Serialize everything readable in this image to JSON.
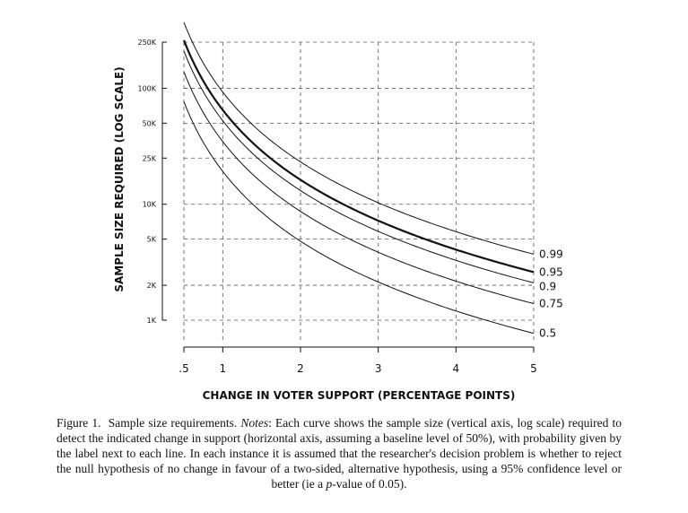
{
  "chart_data": {
    "type": "line",
    "xlabel": "CHANGE IN VOTER SUPPORT (PERCENTAGE POINTS)",
    "ylabel": "SAMPLE SIZE REQUIRED (LOG SCALE)",
    "x_ticks": [
      {
        "value": 0.5,
        "label": ".5"
      },
      {
        "value": 1,
        "label": "1"
      },
      {
        "value": 2,
        "label": "2"
      },
      {
        "value": 3,
        "label": "3"
      },
      {
        "value": 4,
        "label": "4"
      },
      {
        "value": 5,
        "label": "5"
      }
    ],
    "y_ticks": [
      {
        "value": 1000,
        "label": "1K"
      },
      {
        "value": 2000,
        "label": "2K"
      },
      {
        "value": 5000,
        "label": "5K"
      },
      {
        "value": 10000,
        "label": "10K"
      },
      {
        "value": 25000,
        "label": "25K"
      },
      {
        "value": 50000,
        "label": "50K"
      },
      {
        "value": 100000,
        "label": "100K"
      },
      {
        "value": 250000,
        "label": "250K"
      }
    ],
    "y_scale": "log",
    "xlim": [
      0.5,
      5
    ],
    "ylim": [
      1000,
      250000
    ],
    "grid": true,
    "x_samples": [
      0.5,
      0.6,
      0.7,
      0.8,
      1,
      1.25,
      1.5,
      2,
      2.5,
      3,
      3.5,
      4,
      4.5,
      5
    ],
    "series": [
      {
        "name": "0.99",
        "weight": "normal",
        "values": [
          371000,
          258000,
          189000,
          145000,
          92800,
          59400,
          41200,
          23200,
          14850,
          10300,
          7575,
          5800,
          4580,
          3710
        ]
      },
      {
        "name": "0.95",
        "weight": "bold",
        "values": [
          259900,
          180500,
          132600,
          101500,
          64970,
          41580,
          28880,
          16240,
          10400,
          7220,
          5300,
          4060,
          3210,
          2600
        ]
      },
      {
        "name": "0.9",
        "weight": "normal",
        "values": [
          210000,
          145800,
          107100,
          82000,
          52500,
          33600,
          23300,
          13130,
          8400,
          5835,
          4290,
          3280,
          2590,
          2100
        ]
      },
      {
        "name": "0.75",
        "weight": "normal",
        "values": [
          138800,
          96400,
          70800,
          54200,
          34700,
          22200,
          15420,
          8675,
          5550,
          3855,
          2830,
          2170,
          1715,
          1390
        ]
      },
      {
        "name": "0.5",
        "weight": "normal",
        "values": [
          76800,
          53300,
          39200,
          30000,
          19200,
          12290,
          8535,
          4800,
          3070,
          2135,
          1570,
          1200,
          950,
          770
        ]
      }
    ]
  },
  "caption": {
    "figure_label": "Figure 1.",
    "title": "Sample size requirements.",
    "notes_label": "Notes",
    "text_before_p": ": Each curve shows the sample size (vertical axis, log scale) required to detect the indicated change in support (horizontal axis, assuming a baseline level of 50%), with probability given by the label next to each line. In each instance it is assumed that the researcher's decision problem is whether to reject the null hypothesis of no change in favour of a two-sided, alternative hypothesis, using a 95% confidence level or better (ie a ",
    "p_var": "p",
    "text_after_p": "-value of 0.05)."
  }
}
